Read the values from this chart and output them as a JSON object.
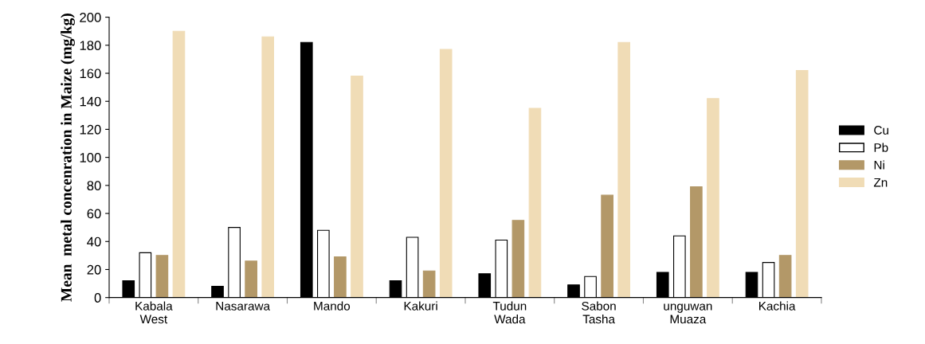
{
  "chart_data": {
    "type": "bar",
    "ylabel": "Mean  metal concenration in Maize (mg/kg)",
    "categories": [
      "Kabala\nWest",
      "Nasarawa",
      "Mando",
      "Kakuri",
      "Tudun\nWada",
      "Sabon\nTasha",
      "unguwan\nMuaza",
      "Kachia"
    ],
    "series": [
      {
        "name": "Cu",
        "color": "#000000",
        "values": [
          12,
          8,
          182,
          12,
          17,
          9,
          18,
          18
        ]
      },
      {
        "name": "Pb",
        "color": "#ffffff",
        "values": [
          32,
          50,
          48,
          43,
          41,
          15,
          44,
          25
        ]
      },
      {
        "name": "Ni",
        "color": "#b39868",
        "values": [
          30,
          26,
          29,
          19,
          55,
          73,
          79,
          30
        ]
      },
      {
        "name": "Zn",
        "color": "#f0dcb6",
        "values": [
          190,
          186,
          158,
          177,
          135,
          182,
          142,
          162
        ]
      }
    ],
    "ylim": [
      0,
      200
    ],
    "yticks": [
      0,
      20,
      40,
      60,
      80,
      100,
      120,
      140,
      160,
      180,
      200
    ],
    "legend": "right",
    "grid": false
  }
}
